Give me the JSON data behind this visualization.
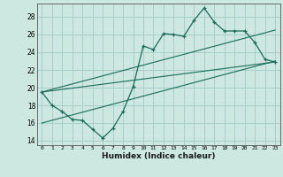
{
  "title": "",
  "xlabel": "Humidex (Indice chaleur)",
  "bg_color": "#cce8e0",
  "grid_color": "#a8cfc8",
  "line_color": "#1a6b5a",
  "xlim": [
    -0.5,
    23.5
  ],
  "ylim": [
    13.5,
    29.5
  ],
  "xticks": [
    0,
    1,
    2,
    3,
    4,
    5,
    6,
    7,
    8,
    9,
    10,
    11,
    12,
    13,
    14,
    15,
    16,
    17,
    18,
    19,
    20,
    21,
    22,
    23
  ],
  "yticks": [
    14,
    16,
    18,
    20,
    22,
    24,
    26,
    28
  ],
  "curve_x": [
    0,
    1,
    2,
    3,
    4,
    5,
    6,
    7,
    8,
    9,
    10,
    11,
    12,
    13,
    14,
    15,
    16,
    17,
    18,
    19,
    20,
    21,
    22,
    23
  ],
  "curve_y": [
    19.5,
    18.0,
    17.3,
    16.4,
    16.3,
    15.3,
    14.3,
    15.4,
    17.3,
    20.1,
    24.7,
    24.3,
    26.1,
    26.0,
    25.8,
    27.6,
    29.0,
    27.4,
    26.4,
    26.4,
    26.4,
    25.1,
    23.2,
    22.9
  ],
  "line1_x": [
    0,
    23
  ],
  "line1_y": [
    19.5,
    22.9
  ],
  "line2_x": [
    0,
    23
  ],
  "line2_y": [
    16.0,
    23.0
  ],
  "line3_x": [
    0,
    23
  ],
  "line3_y": [
    19.5,
    26.5
  ]
}
